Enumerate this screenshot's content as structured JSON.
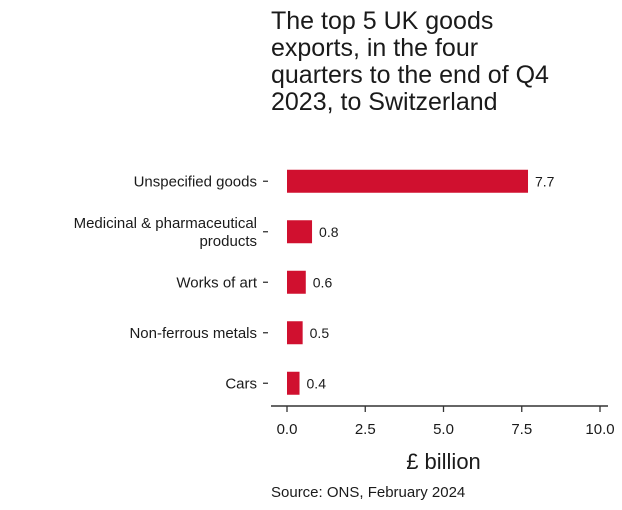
{
  "chart_data": {
    "type": "bar",
    "orientation": "horizontal",
    "title_lines": [
      "The top 5 UK goods",
      "exports, in the four",
      "quarters to the end of Q4",
      "2023, to Switzerland"
    ],
    "categories": [
      [
        "Unspecified goods"
      ],
      [
        "Medicinal & pharmaceutical",
        "products"
      ],
      [
        "Works of art"
      ],
      [
        "Non-ferrous metals"
      ],
      [
        "Cars"
      ]
    ],
    "values": [
      7.7,
      0.8,
      0.6,
      0.5,
      0.4
    ],
    "value_labels": [
      "7.7",
      "0.8",
      "0.6",
      "0.5",
      "0.4"
    ],
    "xlabel": "£ billion",
    "xlim": [
      0,
      10
    ],
    "ticks": [
      0,
      2.5,
      5,
      7.5,
      10
    ],
    "tick_labels": [
      "0.0",
      "2.5",
      "5.0",
      "7.5",
      "10.0"
    ],
    "bar_color": "#d0102f",
    "grid": false,
    "source": "Source: ONS, February 2024"
  }
}
